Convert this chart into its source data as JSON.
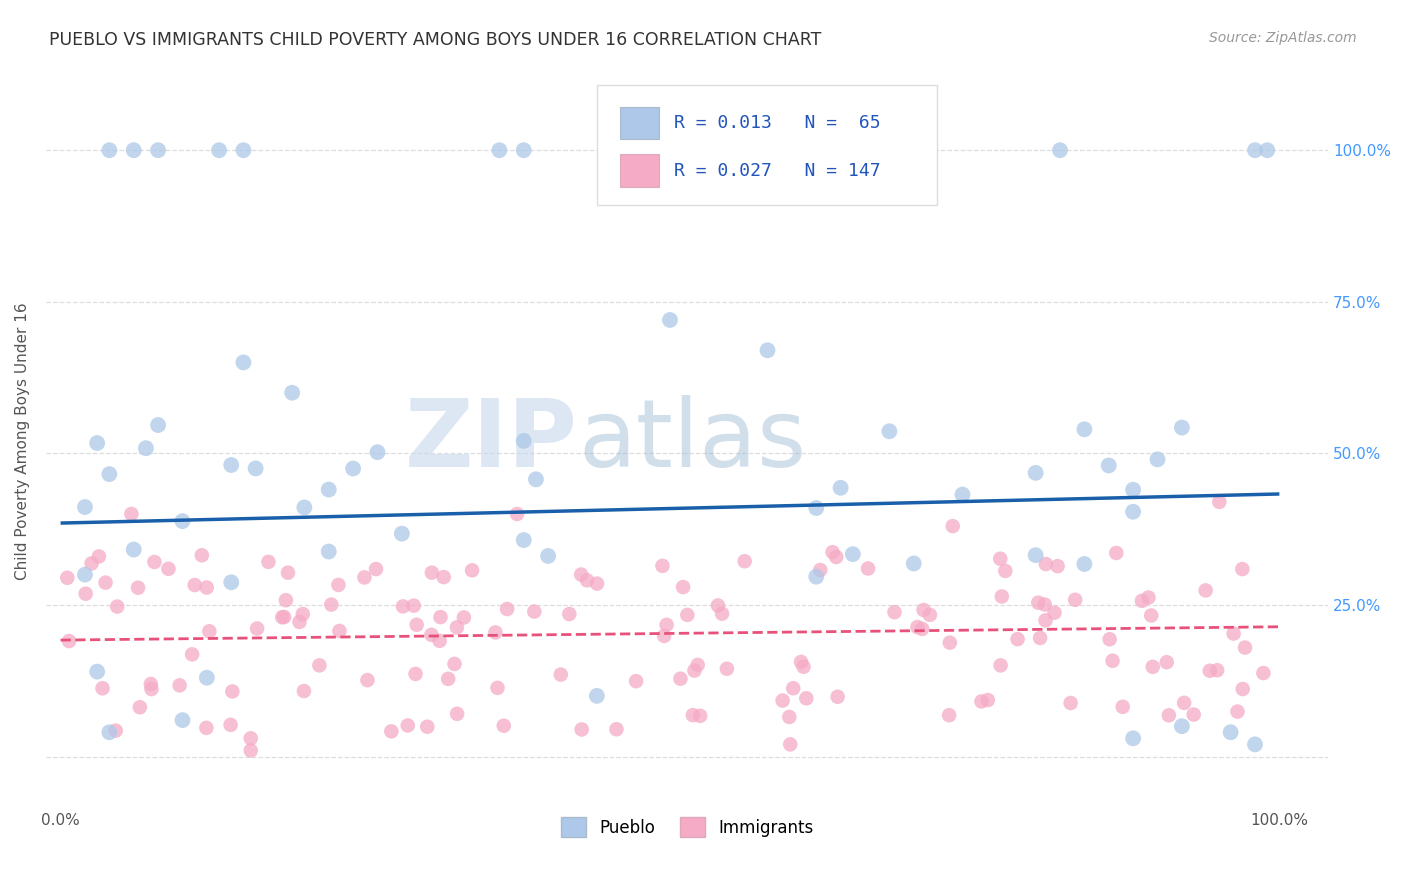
{
  "title": "PUEBLO VS IMMIGRANTS CHILD POVERTY AMONG BOYS UNDER 16 CORRELATION CHART",
  "source": "Source: ZipAtlas.com",
  "ylabel": "Child Poverty Among Boys Under 16",
  "pueblo_R": 0.013,
  "pueblo_N": 65,
  "immigrants_R": 0.027,
  "immigrants_N": 147,
  "pueblo_color": "#adc8e8",
  "immigrants_color": "#f5aac5",
  "pueblo_line_color": "#1a5faa",
  "immigrants_line_color": "#e8527a",
  "pueblo_line_intercept": 0.385,
  "pueblo_line_slope": 0.048,
  "immigrants_line_intercept": 0.192,
  "immigrants_line_slope": 0.022,
  "watermark_zip": "ZIP",
  "watermark_atlas": "atlas",
  "bg_color": "#ffffff",
  "grid_color": "#dddddd",
  "title_color": "#333333",
  "source_color": "#999999",
  "ylabel_color": "#555555",
  "tick_color": "#4499ff",
  "xtick_color": "#555555"
}
